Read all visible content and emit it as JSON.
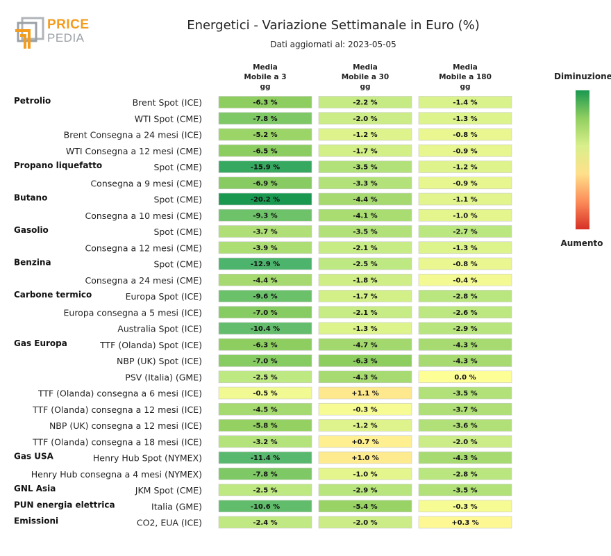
{
  "header": {
    "logo_price": "PRICE",
    "logo_pedia": "PEDIA",
    "title": "Energetici - Variazione Settimanale in Euro (%)",
    "subtitle": "Dati aggiornati al: 2023-05-05"
  },
  "legend": {
    "top_label": "Diminuzione",
    "bottom_label": "Aumento",
    "colors": [
      "#1a9850",
      "#91cf60",
      "#d9ef8b",
      "#fee08b",
      "#fc8d59",
      "#d73027"
    ]
  },
  "chart_data": {
    "type": "heatmap",
    "title": "Energetici - Variazione Settimanale in Euro (%)",
    "columns": [
      "Media Mobile a 3 gg",
      "Media Mobile a 30 gg",
      "Media Mobile a 180 gg"
    ],
    "column_lines": [
      [
        "Media",
        "Mobile a 3",
        "gg"
      ],
      [
        "Media",
        "Mobile a 30",
        "gg"
      ],
      [
        "Media",
        "Mobile a 180",
        "gg"
      ]
    ],
    "value_suffix": " %",
    "rows": [
      {
        "group": "Petrolio",
        "label": "Brent Spot (ICE)",
        "values": [
          -6.3,
          -2.2,
          -1.4
        ]
      },
      {
        "group": "",
        "label": "WTI Spot (CME)",
        "values": [
          -7.8,
          -2.0,
          -1.3
        ]
      },
      {
        "group": "",
        "label": "Brent Consegna a 24 mesi (ICE)",
        "values": [
          -5.2,
          -1.2,
          -0.8
        ]
      },
      {
        "group": "",
        "label": "WTI Consegna a 12 mesi (CME)",
        "values": [
          -6.5,
          -1.7,
          -0.9
        ]
      },
      {
        "group": "Propano liquefatto",
        "label": "Spot (CME)",
        "values": [
          -15.9,
          -3.5,
          -1.2
        ]
      },
      {
        "group": "",
        "label": "Consegna a 9 mesi (CME)",
        "values": [
          -6.9,
          -3.3,
          -0.9
        ]
      },
      {
        "group": "Butano",
        "label": "Spot (CME)",
        "values": [
          -20.2,
          -4.4,
          -1.1
        ]
      },
      {
        "group": "",
        "label": "Consegna a 10 mesi (CME)",
        "values": [
          -9.3,
          -4.1,
          -1.0
        ]
      },
      {
        "group": "Gasolio",
        "label": "Spot (CME)",
        "values": [
          -3.7,
          -3.5,
          -2.7
        ]
      },
      {
        "group": "",
        "label": "Consegna a 12 mesi (CME)",
        "values": [
          -3.9,
          -2.1,
          -1.3
        ]
      },
      {
        "group": "Benzina",
        "label": "Spot (CME)",
        "values": [
          -12.9,
          -2.5,
          -0.8
        ]
      },
      {
        "group": "",
        "label": "Consegna a 24 mesi (CME)",
        "values": [
          -4.4,
          -1.8,
          -0.4
        ]
      },
      {
        "group": "Carbone termico",
        "label": "Europa Spot (ICE)",
        "values": [
          -9.6,
          -1.7,
          -2.8
        ]
      },
      {
        "group": "",
        "label": "Europa consegna a 5 mesi (ICE)",
        "values": [
          -7.0,
          -2.1,
          -2.6
        ]
      },
      {
        "group": "",
        "label": "Australia Spot (ICE)",
        "values": [
          -10.4,
          -1.3,
          -2.9
        ]
      },
      {
        "group": "Gas Europa",
        "label": "TTF (Olanda) Spot (ICE)",
        "values": [
          -6.3,
          -4.7,
          -4.3
        ]
      },
      {
        "group": "",
        "label": "NBP (UK) Spot (ICE)",
        "values": [
          -7.0,
          -6.3,
          -4.3
        ]
      },
      {
        "group": "",
        "label": "PSV (Italia) (GME)",
        "values": [
          -2.5,
          -4.3,
          0.0
        ]
      },
      {
        "group": "",
        "label": "TTF (Olanda) consegna a 6 mesi (ICE)",
        "values": [
          -0.5,
          1.1,
          -3.5
        ]
      },
      {
        "group": "",
        "label": "TTF (Olanda) consegna a 12 mesi (ICE)",
        "values": [
          -4.5,
          -0.3,
          -3.7
        ]
      },
      {
        "group": "",
        "label": "NBP (UK) consegna a 12 mesi (ICE)",
        "values": [
          -5.8,
          -1.2,
          -3.6
        ]
      },
      {
        "group": "",
        "label": "TTF (Olanda) consegna a 18 mesi (ICE)",
        "values": [
          -3.2,
          0.7,
          -2.0
        ]
      },
      {
        "group": "Gas USA",
        "label": "Henry Hub Spot (NYMEX)",
        "values": [
          -11.4,
          1.0,
          -4.3
        ]
      },
      {
        "group": "",
        "label": "Henry Hub consegna a 4 mesi (NYMEX)",
        "values": [
          -7.8,
          -1.0,
          -2.8
        ]
      },
      {
        "group": "GNL Asia",
        "label": "JKM Spot (CME)",
        "values": [
          -2.5,
          -2.9,
          -3.5
        ]
      },
      {
        "group": "PUN energia elettrica",
        "label": "Italia (GME)",
        "values": [
          -10.6,
          -5.4,
          -0.3
        ]
      },
      {
        "group": "Emissioni",
        "label": "CO2, EUA (ICE)",
        "values": [
          -2.4,
          -2.0,
          0.3
        ]
      }
    ]
  }
}
